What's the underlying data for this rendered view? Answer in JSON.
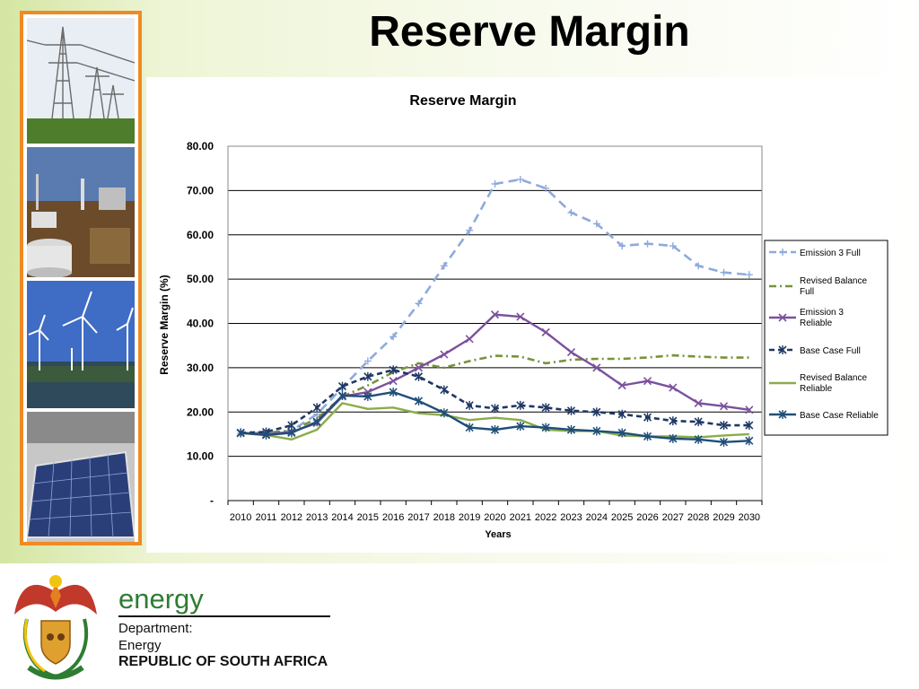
{
  "slide": {
    "title": "Reserve Margin"
  },
  "footer": {
    "brand_word": "energy",
    "department_line1": "Department:",
    "department_line2": "Energy",
    "country_line": "REPUBLIC OF SOUTH AFRICA"
  },
  "chart_data": {
    "type": "line",
    "title": "Reserve Margin",
    "xlabel": "Years",
    "ylabel": "Reserve Margin (%)",
    "ylim": [
      0,
      80
    ],
    "y_ticks": [
      "-",
      "10.00",
      "20.00",
      "30.00",
      "40.00",
      "50.00",
      "60.00",
      "70.00",
      "80.00"
    ],
    "grid": true,
    "legend_position": "right",
    "x": [
      "2010",
      "2011",
      "2012",
      "2013",
      "2014",
      "2015",
      "2016",
      "2017",
      "2018",
      "2019",
      "2020",
      "2021",
      "2022",
      "2023",
      "2024",
      "2025",
      "2026",
      "2027",
      "2028",
      "2029",
      "2030"
    ],
    "series": [
      {
        "name": "Emission 3 Full",
        "color": "#8faadc",
        "dash": "long-dash",
        "marker": "plus",
        "values": [
          15.2,
          15.3,
          15.8,
          19.5,
          25.5,
          31.5,
          37.0,
          44.5,
          53.0,
          61.0,
          71.5,
          72.5,
          70.5,
          65.0,
          62.5,
          57.5,
          58.0,
          57.5,
          53.0,
          51.5,
          51.0
        ]
      },
      {
        "name": "Revised Balance Full",
        "color": "#77933c",
        "dash": "dash-dot",
        "marker": "none",
        "values": [
          15.2,
          15.3,
          15.8,
          18.5,
          23.5,
          26.0,
          29.0,
          31.0,
          30.0,
          31.5,
          32.7,
          32.5,
          31.0,
          31.8,
          32.0,
          32.0,
          32.3,
          32.8,
          32.5,
          32.3,
          32.3
        ]
      },
      {
        "name": "Emission 3 Reliable",
        "color": "#7b519d",
        "dash": "solid",
        "marker": "x",
        "values": [
          15.2,
          15.0,
          15.5,
          17.5,
          23.5,
          24.5,
          27.0,
          30.0,
          33.0,
          36.5,
          42.0,
          41.5,
          38.0,
          33.5,
          30.0,
          26.0,
          27.0,
          25.5,
          22.0,
          21.3,
          20.5
        ]
      },
      {
        "name": "Base Case Full",
        "color": "#1f3864",
        "dash": "short-dash",
        "marker": "star",
        "values": [
          15.3,
          15.5,
          17.0,
          21.0,
          25.8,
          28.0,
          29.5,
          28.0,
          25.0,
          21.5,
          20.8,
          21.5,
          21.0,
          20.3,
          20.0,
          19.5,
          18.8,
          18.0,
          17.8,
          17.0,
          17.0
        ]
      },
      {
        "name": "Revised Balance Reliable",
        "color": "#8bac4a",
        "dash": "solid",
        "marker": "none",
        "values": [
          15.2,
          14.8,
          13.8,
          16.0,
          22.0,
          20.7,
          21.0,
          19.7,
          19.3,
          18.2,
          18.7,
          18.2,
          16.0,
          15.7,
          15.7,
          14.7,
          14.5,
          14.5,
          14.3,
          14.7,
          15.0
        ]
      },
      {
        "name": "Base Case Reliable",
        "color": "#1f4e79",
        "dash": "solid",
        "marker": "star",
        "values": [
          15.3,
          14.8,
          15.3,
          17.8,
          23.7,
          23.5,
          24.5,
          22.5,
          19.8,
          16.5,
          16.0,
          16.8,
          16.5,
          16.0,
          15.7,
          15.3,
          14.5,
          14.0,
          13.8,
          13.2,
          13.5
        ]
      }
    ]
  }
}
